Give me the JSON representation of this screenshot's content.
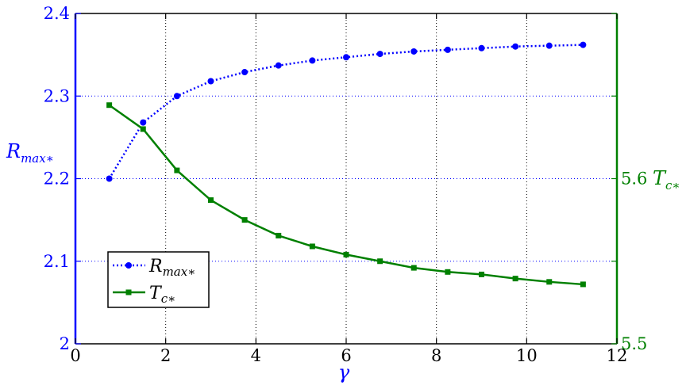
{
  "colors": {
    "left_axis": "#0000ff",
    "right_axis": "#008000",
    "series_r": "#0000ff",
    "series_t": "#008000",
    "frame": "#000000",
    "grid_x": "#000000",
    "grid_y": "#0000ff"
  },
  "chart_data": {
    "type": "line",
    "title": "",
    "xlabel": "γ",
    "xlim": [
      0,
      12
    ],
    "x_ticks": [
      "0",
      "2",
      "4",
      "6",
      "8",
      "10",
      "12"
    ],
    "x_tick_values": [
      0,
      2,
      4,
      6,
      8,
      10,
      12
    ],
    "left_axis": {
      "label_main": "R",
      "label_sub": "max∗",
      "ylim": [
        2,
        2.4
      ],
      "ticks": [
        "2",
        "2.1",
        "2.2",
        "2.3",
        "2.4"
      ],
      "tick_values": [
        2,
        2.1,
        2.2,
        2.3,
        2.4
      ]
    },
    "right_axis": {
      "label_main": "T",
      "label_sub": "c∗",
      "ylim": [
        5.5,
        5.7
      ],
      "ticks": [
        "5.5",
        "5.6"
      ],
      "tick_values": [
        5.5,
        5.6
      ]
    },
    "grid": true,
    "legend_position": "lower-left",
    "x": [
      0.75,
      1.5,
      2.25,
      3.0,
      3.75,
      4.5,
      5.25,
      6.0,
      6.75,
      7.5,
      8.25,
      9.0,
      9.75,
      10.5,
      11.25
    ],
    "series": [
      {
        "label_main": "R",
        "label_sub": "max∗",
        "axis": "left",
        "style": "dotted",
        "marker": "circle",
        "values": [
          2.2,
          2.268,
          2.3,
          2.318,
          2.329,
          2.337,
          2.343,
          2.347,
          2.351,
          2.354,
          2.356,
          2.358,
          2.36,
          2.361,
          2.362
        ]
      },
      {
        "label_main": "T",
        "label_sub": "c∗",
        "axis": "right",
        "style": "solid",
        "marker": "square",
        "values": [
          5.6445,
          5.63,
          5.605,
          5.587,
          5.575,
          5.5655,
          5.559,
          5.554,
          5.55,
          5.546,
          5.5435,
          5.542,
          5.5395,
          5.5375,
          5.536
        ]
      }
    ]
  }
}
